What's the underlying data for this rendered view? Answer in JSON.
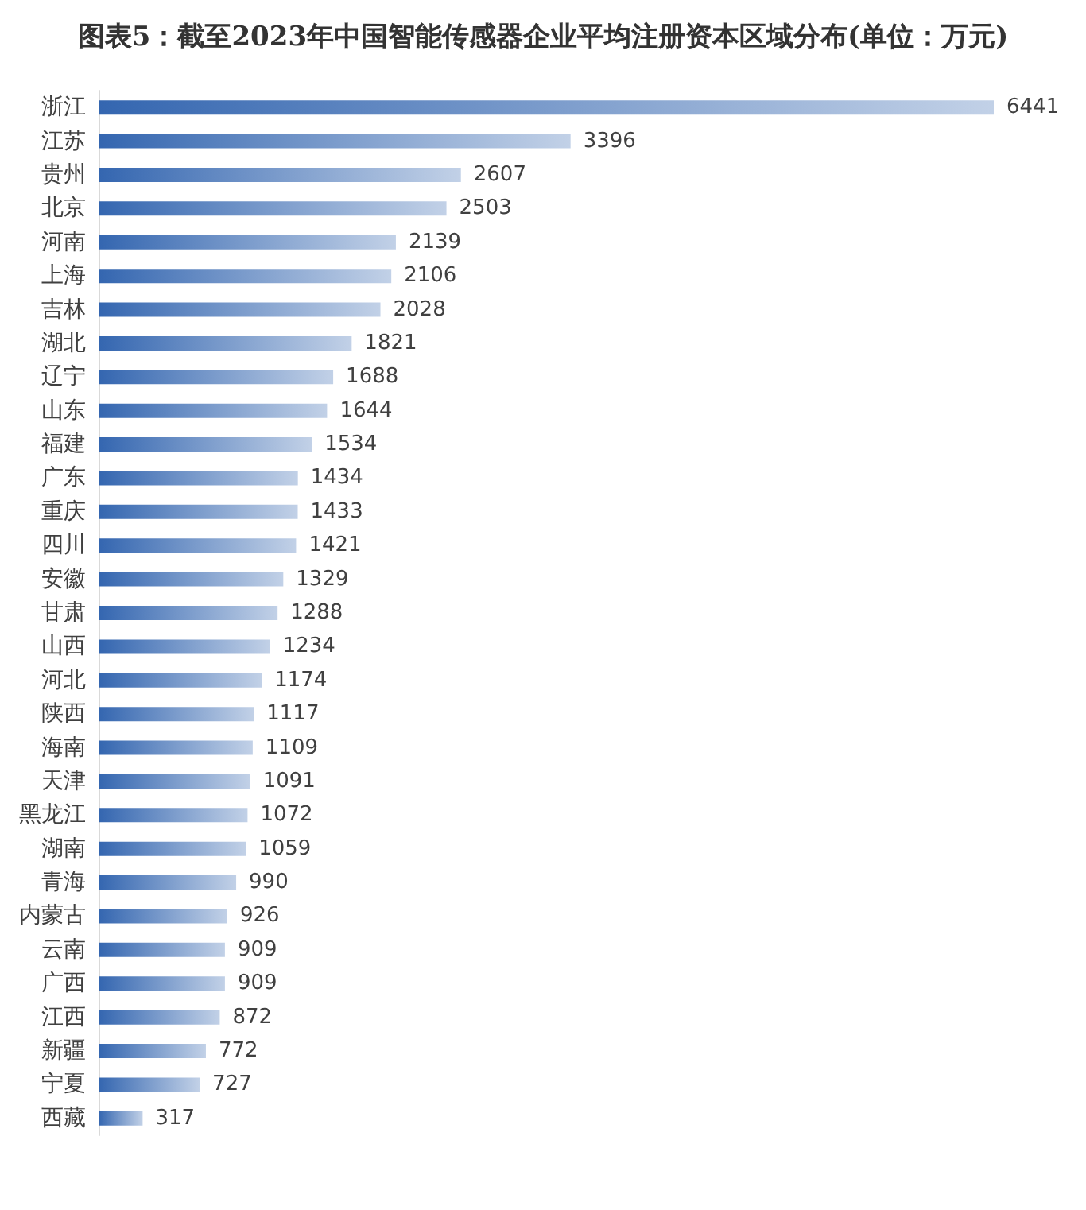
{
  "chart_data": {
    "type": "bar",
    "orientation": "horizontal",
    "title": "图表5：截至2023年中国智能传感器企业平均注册资本区域分布(单位：万元)",
    "categories": [
      "浙江",
      "江苏",
      "贵州",
      "北京",
      "河南",
      "上海",
      "吉林",
      "湖北",
      "辽宁",
      "山东",
      "福建",
      "广东",
      "重庆",
      "四川",
      "安徽",
      "甘肃",
      "山西",
      "河北",
      "陕西",
      "海南",
      "天津",
      "黑龙江",
      "湖南",
      "青海",
      "内蒙古",
      "云南",
      "广西",
      "江西",
      "新疆",
      "宁夏",
      "西藏"
    ],
    "values": [
      6441,
      3396,
      2607,
      2503,
      2139,
      2106,
      2028,
      1821,
      1688,
      1644,
      1534,
      1434,
      1433,
      1421,
      1329,
      1288,
      1234,
      1174,
      1117,
      1109,
      1091,
      1072,
      1059,
      990,
      926,
      909,
      909,
      872,
      772,
      727,
      317
    ],
    "color": "#3466b0",
    "data_labels": true,
    "tick_labels": "y"
  }
}
